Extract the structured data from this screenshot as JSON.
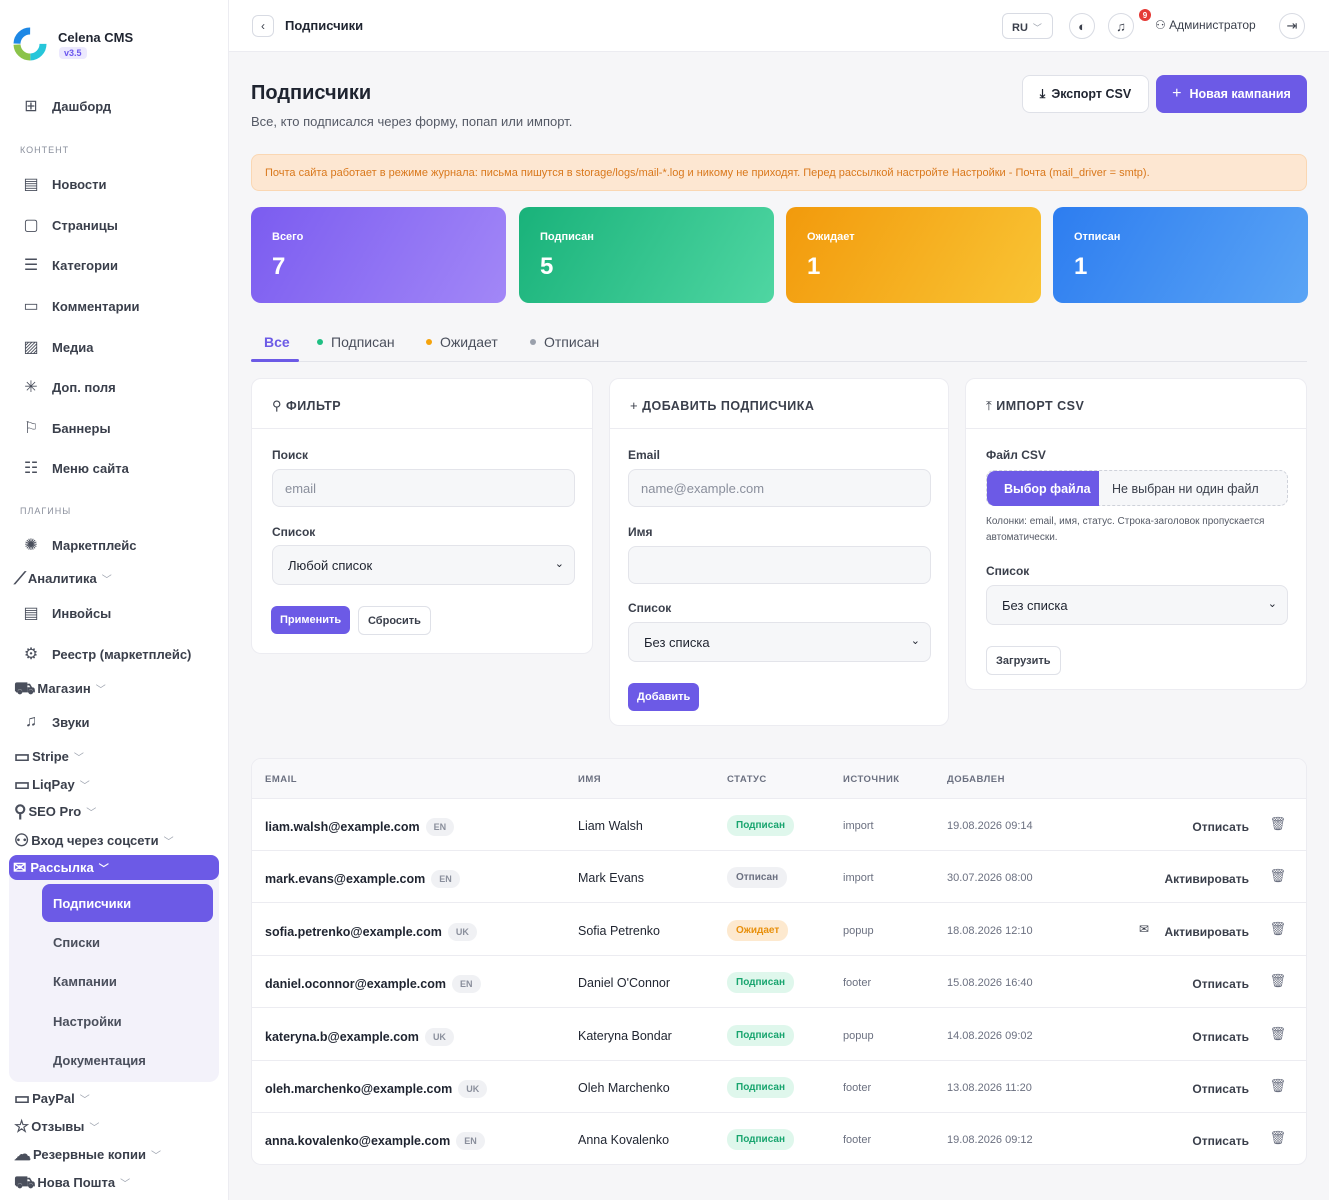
{
  "sidebar": {
    "brand": "Celena CMS",
    "version": "v3.5",
    "dashboard": "Дашборд",
    "section_content": "КОНТЕНТ",
    "content_items": [
      "Новости",
      "Страницы",
      "Категории",
      "Комментарии",
      "Медиа",
      "Доп. поля",
      "Баннеры",
      "Меню сайта"
    ],
    "section_plugins": "ПЛАГИНЫ",
    "plugins": {
      "marketplace": "Маркетплейс",
      "analytics": "Аналитика",
      "invoices": "Инвойсы",
      "registry": "Реестр (маркетплейс)",
      "shop": "Магазин",
      "sounds": "Звуки",
      "stripe": "Stripe",
      "liqpay": "LiqPay",
      "seo": "SEO Pro",
      "social": "Вход через соцсети",
      "mailing": "Рассылка",
      "paypal": "PayPal",
      "reviews": "Отзывы",
      "backups": "Резервные копии",
      "novaposhta": "Нова Пошта"
    },
    "mailing_sub": [
      "Подписчики",
      "Списки",
      "Кампании",
      "Настройки",
      "Документация"
    ]
  },
  "topbar": {
    "crumb": "Подписчики",
    "lang": "RU",
    "notif_count": "9",
    "user": "Администратор"
  },
  "page": {
    "title": "Подписчики",
    "subtitle": "Все, кто подписался через форму, попап или импорт.",
    "export_label": "Экспорт CSV",
    "new_campaign_label": "Новая кампания",
    "alert": "Почта сайта работает в режиме журнала: письма пишутся в storage/logs/mail-*.log и никому не приходят. Перед рассылкой настройте Настройки - Почта (mail_driver = smtp)."
  },
  "stats": [
    {
      "label": "Всего",
      "value": "7"
    },
    {
      "label": "Подписан",
      "value": "5"
    },
    {
      "label": "Ожидает",
      "value": "1"
    },
    {
      "label": "Отписан",
      "value": "1"
    }
  ],
  "colors": {
    "accent": "#6c5ae6",
    "subscribed": "#1fbf83",
    "pending": "#f5a30c",
    "unsubscribed": "#9aa0ac"
  },
  "tabs": [
    "Все",
    "Подписан",
    "Ожидает",
    "Отписан"
  ],
  "filter": {
    "title": "ФИЛЬТР",
    "search_label": "Поиск",
    "search_placeholder": "email",
    "list_label": "Список",
    "list_value": "Любой список",
    "apply": "Применить",
    "reset": "Сбросить"
  },
  "add": {
    "title": "ДОБАВИТЬ ПОДПИСЧИКА",
    "email_label": "Email",
    "email_placeholder": "name@example.com",
    "name_label": "Имя",
    "name_value": "",
    "list_label": "Список",
    "list_value": "Без списка",
    "submit": "Добавить"
  },
  "import": {
    "title": "ИМПОРТ CSV",
    "file_label": "Файл CSV",
    "choose": "Выбор файла",
    "no_file": "Не выбран ни один файл",
    "hint": "Колонки: email, имя, статус. Строка-заголовок пропускается автоматически.",
    "list_label": "Список",
    "list_value": "Без списка",
    "upload": "Загрузить"
  },
  "table": {
    "headers": [
      "EMAIL",
      "ИМЯ",
      "СТАТУС",
      "ИСТОЧНИК",
      "ДОБАВЛЕН"
    ],
    "rows": [
      {
        "email": "liam.walsh@example.com",
        "lang": "EN",
        "name": "Liam Walsh",
        "status": "Подписан",
        "source": "import",
        "date": "19.08.2026 09:14",
        "action": "Отписать"
      },
      {
        "email": "mark.evans@example.com",
        "lang": "EN",
        "name": "Mark Evans",
        "status": "Отписан",
        "source": "import",
        "date": "30.07.2026 08:00",
        "action": "Активировать"
      },
      {
        "email": "sofia.petrenko@example.com",
        "lang": "UK",
        "name": "Sofia Petrenko",
        "status": "Ожидает",
        "source": "popup",
        "date": "18.08.2026 12:10",
        "action": "Активировать"
      },
      {
        "email": "daniel.oconnor@example.com",
        "lang": "EN",
        "name": "Daniel O'Connor",
        "status": "Подписан",
        "source": "footer",
        "date": "15.08.2026 16:40",
        "action": "Отписать"
      },
      {
        "email": "kateryna.b@example.com",
        "lang": "UK",
        "name": "Kateryna Bondar",
        "status": "Подписан",
        "source": "popup",
        "date": "14.08.2026 09:02",
        "action": "Отписать"
      },
      {
        "email": "oleh.marchenko@example.com",
        "lang": "UK",
        "name": "Oleh Marchenko",
        "status": "Подписан",
        "source": "footer",
        "date": "13.08.2026 11:20",
        "action": "Отписать"
      },
      {
        "email": "anna.kovalenko@example.com",
        "lang": "EN",
        "name": "Anna Kovalenko",
        "status": "Подписан",
        "source": "footer",
        "date": "19.08.2026 09:12",
        "action": "Отписать"
      }
    ]
  }
}
